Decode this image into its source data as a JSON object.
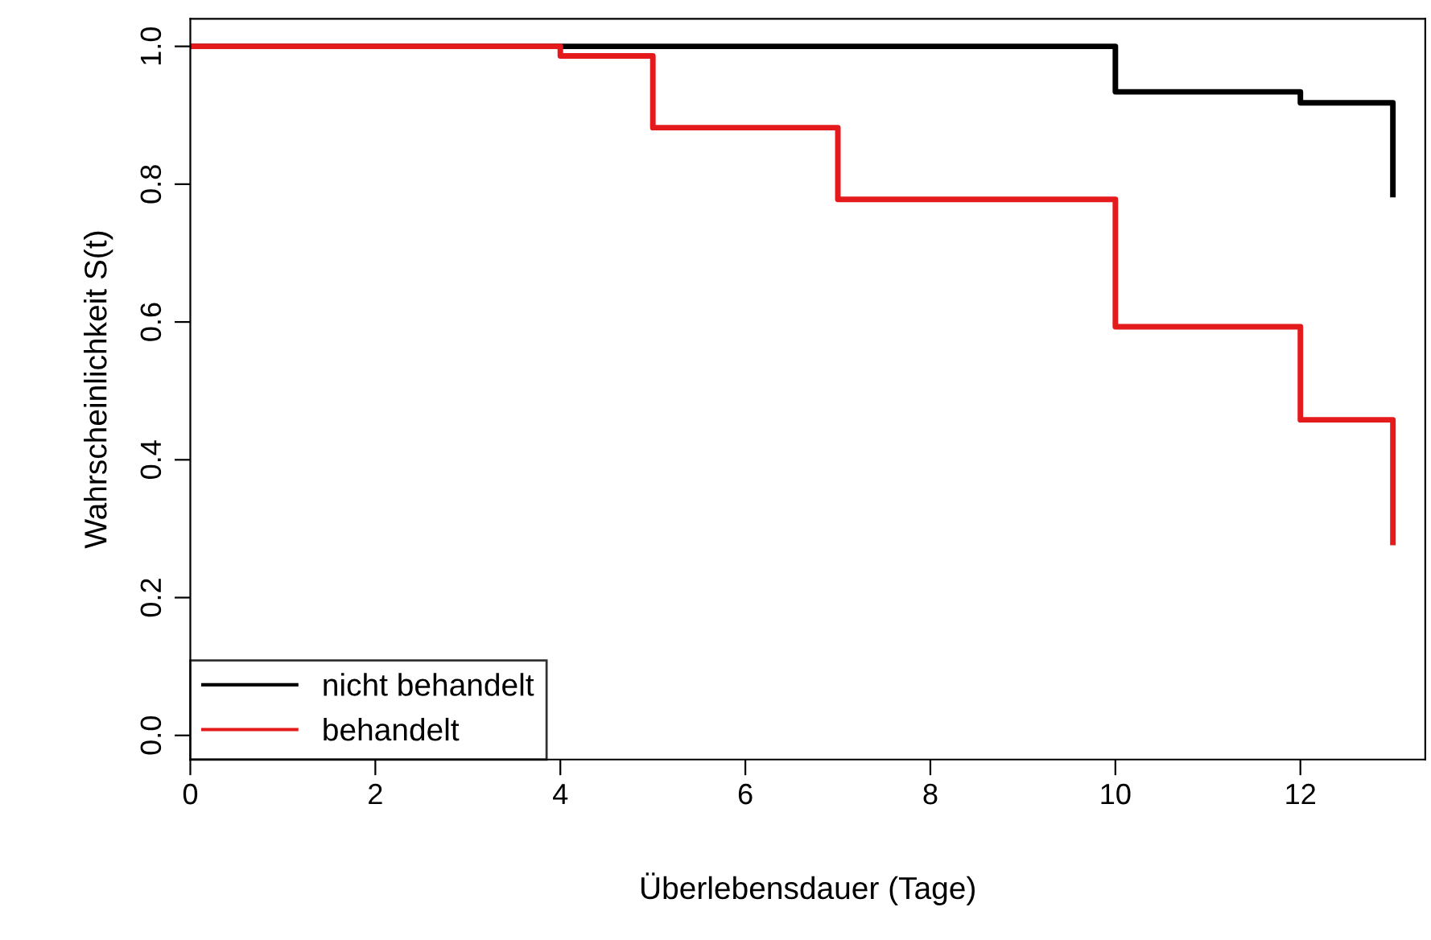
{
  "chart_data": {
    "type": "step",
    "xlabel": "Überlebensdauer (Tage)",
    "ylabel": "Wahrscheinlichkeit S(t)",
    "xlim": [
      0,
      13.35
    ],
    "ylim": [
      -0.035,
      1.04
    ],
    "xticks": [
      0,
      2,
      4,
      6,
      8,
      10,
      12
    ],
    "yticks": [
      {
        "value": 0,
        "label": "0.0"
      },
      0.2,
      0.4,
      0.6,
      0.8,
      {
        "value": 1,
        "label": "1.0"
      }
    ],
    "series": [
      {
        "name": "nicht behandelt",
        "color": "#000000",
        "x": [
          0,
          10,
          12,
          13
        ],
        "values": [
          1.0,
          0.934,
          0.918,
          0.785
        ]
      },
      {
        "name": "behandelt",
        "color": "#e41a1c",
        "x": [
          0,
          4,
          5,
          7,
          10,
          12,
          13
        ],
        "values": [
          1.0,
          0.986,
          0.882,
          0.778,
          0.593,
          0.458,
          0.28
        ]
      }
    ],
    "legend": "bottom left",
    "grid": false,
    "line_style": "solid",
    "marker": "none"
  }
}
